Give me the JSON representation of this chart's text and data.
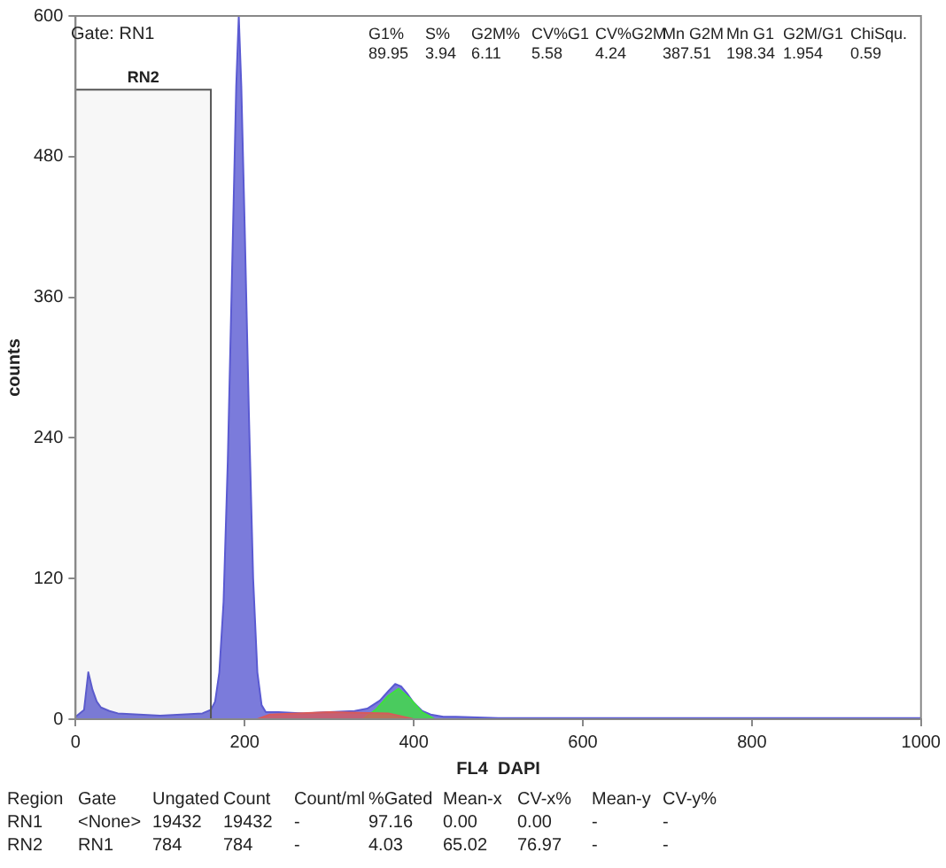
{
  "chart_data": {
    "type": "area",
    "xlabel": "FL4  DAPI",
    "ylabel": "counts",
    "xlim": [
      0,
      1000
    ],
    "ylim": [
      0,
      600
    ],
    "xticks": [
      0,
      200,
      400,
      600,
      800,
      1000
    ],
    "yticks": [
      0,
      120,
      240,
      360,
      480,
      600
    ],
    "grid": false,
    "legend": false,
    "series": [
      {
        "color": "#5a5ad2",
        "x": [
          0,
          10,
          15,
          20,
          25,
          30,
          40,
          50,
          75,
          100,
          125,
          150,
          160,
          165,
          170,
          175,
          180,
          185,
          190,
          193,
          196,
          200,
          205,
          210,
          215,
          220,
          225,
          240,
          270,
          300,
          330,
          345,
          360,
          370,
          378,
          385,
          392,
          400,
          410,
          420,
          435,
          450,
          500,
          600,
          700,
          800,
          900,
          1000
        ],
        "values": [
          2,
          8,
          40,
          25,
          15,
          10,
          7,
          5,
          4,
          3,
          4,
          5,
          8,
          15,
          40,
          100,
          220,
          380,
          540,
          600,
          540,
          420,
          260,
          120,
          40,
          12,
          6,
          6,
          5,
          6,
          7,
          9,
          16,
          24,
          30,
          28,
          22,
          14,
          7,
          4,
          2,
          2,
          1,
          1,
          1,
          1,
          1,
          1
        ]
      },
      {
        "color": "#3ee03e",
        "x": [
          340,
          355,
          370,
          382,
          395,
          410,
          425
        ],
        "values": [
          0,
          8,
          20,
          26,
          18,
          6,
          0
        ]
      },
      {
        "color": "#d85a5a",
        "x": [
          215,
          230,
          300,
          370,
          400
        ],
        "values": [
          0,
          4,
          6,
          5,
          0
        ]
      }
    ],
    "bands": [
      {
        "axis": "x",
        "from": 0,
        "to": 160,
        "label": "RN2"
      }
    ],
    "annotations": [
      "Gate: RN1",
      "G1%",
      "S%",
      "G2M%",
      "CV%G1",
      "CV%G2M",
      "Mn G2M",
      "Mn G1",
      "G2M/G1",
      "ChiSqu.",
      "89.95",
      "3.94",
      "6.11",
      "5.58",
      "4.24",
      "387.51",
      "198.34",
      "1.954",
      "0.59",
      "Region",
      "Gate",
      "Ungated",
      "Count",
      "Count/ml",
      "%Gated",
      "Mean-x",
      "CV-x%",
      "Mean-y",
      "CV-y%",
      "RN1",
      "<None>",
      "19432",
      "19432",
      "-",
      "97.16",
      "0.00",
      "0.00",
      "-",
      "-",
      "RN2",
      "RN1",
      "784",
      "784",
      "-",
      "4.03",
      "65.02",
      "76.97",
      "-",
      "-"
    ]
  }
}
